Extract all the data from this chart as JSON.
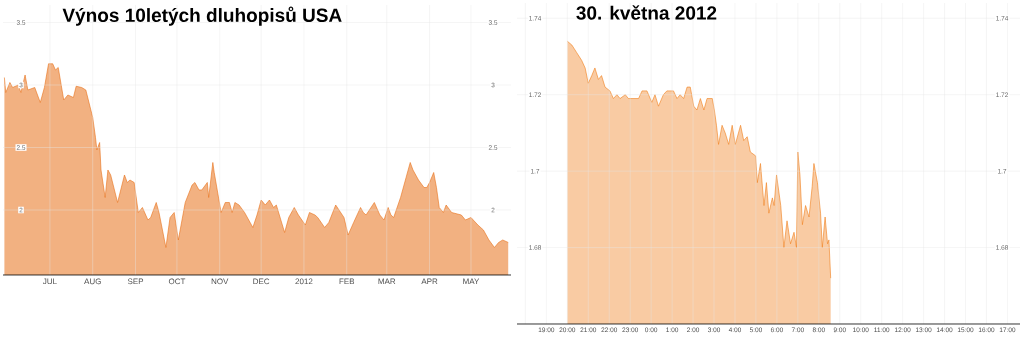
{
  "chart_data": [
    {
      "type": "area",
      "title": "Výnos 10letých dluhopisů USA",
      "color": "#e8711a",
      "grid": true,
      "xlim": [
        "2011-05-28",
        "2012-05-30"
      ],
      "ylim": [
        1.48,
        3.64
      ],
      "yticks": [
        2,
        2.5,
        3,
        3.5
      ],
      "y2lim": [
        1.48,
        3.64
      ],
      "y2ticks": [
        2,
        2.5,
        3,
        3.5
      ],
      "xticks": [
        {
          "value": "2011-07-01",
          "label": "JUL"
        },
        {
          "value": "2011-08-01",
          "label": "AUG"
        },
        {
          "value": "2011-09-01",
          "label": "SEP"
        },
        {
          "value": "2011-10-01",
          "label": "OCT"
        },
        {
          "value": "2011-11-01",
          "label": "NOV"
        },
        {
          "value": "2011-12-01",
          "label": "DEC"
        },
        {
          "value": "2012-01-01",
          "label": "2012"
        },
        {
          "value": "2012-02-01",
          "label": "FEB"
        },
        {
          "value": "2012-03-01",
          "label": "MAR"
        },
        {
          "value": "2012-04-01",
          "label": "APR"
        },
        {
          "value": "2012-05-01",
          "label": "MAY"
        }
      ],
      "x": [
        "2011-05-29",
        "2011-05-30",
        "2011-06-02",
        "2011-06-04",
        "2011-06-08",
        "2011-06-10",
        "2011-06-13",
        "2011-06-15",
        "2011-06-20",
        "2011-06-24",
        "2011-06-27",
        "2011-06-30",
        "2011-07-03",
        "2011-07-05",
        "2011-07-07",
        "2011-07-11",
        "2011-07-14",
        "2011-07-18",
        "2011-07-20",
        "2011-07-24",
        "2011-07-27",
        "2011-08-01",
        "2011-08-03",
        "2011-08-04",
        "2011-08-06",
        "2011-08-07",
        "2011-08-10",
        "2011-08-12",
        "2011-08-14",
        "2011-08-19",
        "2011-08-24",
        "2011-08-26",
        "2011-08-28",
        "2011-08-31",
        "2011-09-03",
        "2011-09-06",
        "2011-09-10",
        "2011-09-12",
        "2011-09-16",
        "2011-09-18",
        "2011-09-23",
        "2011-09-26",
        "2011-09-29",
        "2011-10-02",
        "2011-10-07",
        "2011-10-12",
        "2011-10-14",
        "2011-10-17",
        "2011-10-19",
        "2011-10-23",
        "2011-10-24",
        "2011-10-27",
        "2011-10-28",
        "2011-11-02",
        "2011-11-05",
        "2011-11-08",
        "2011-11-10",
        "2011-11-12",
        "2011-11-15",
        "2011-11-19",
        "2011-11-25",
        "2011-11-28",
        "2011-12-01",
        "2011-12-04",
        "2011-12-07",
        "2011-12-10",
        "2011-12-12",
        "2011-12-18",
        "2011-12-21",
        "2011-12-25",
        "2011-12-28",
        "2012-01-02",
        "2012-01-05",
        "2012-01-09",
        "2012-01-11",
        "2012-01-16",
        "2012-01-19",
        "2012-01-24",
        "2012-01-30",
        "2012-02-02",
        "2012-02-06",
        "2012-02-11",
        "2012-02-13",
        "2012-02-15",
        "2012-02-21",
        "2012-02-25",
        "2012-02-28",
        "2012-03-02",
        "2012-03-04",
        "2012-03-06",
        "2012-03-11",
        "2012-03-15",
        "2012-03-18",
        "2012-03-20",
        "2012-03-24",
        "2012-03-28",
        "2012-03-30",
        "2012-04-01",
        "2012-04-04",
        "2012-04-06",
        "2012-04-08",
        "2012-04-11",
        "2012-04-13",
        "2012-04-17",
        "2012-04-24",
        "2012-04-27",
        "2012-05-01",
        "2012-05-06",
        "2012-05-10",
        "2012-05-14",
        "2012-05-18",
        "2012-05-21",
        "2012-05-24",
        "2012-05-28"
      ],
      "values": [
        3.06,
        2.94,
        3.02,
        2.98,
        3.0,
        2.94,
        3.08,
        2.96,
        2.98,
        2.86,
        2.98,
        3.17,
        3.17,
        3.12,
        3.14,
        2.88,
        2.92,
        2.9,
        2.99,
        2.98,
        2.96,
        2.74,
        2.58,
        2.48,
        2.54,
        2.32,
        2.1,
        2.32,
        2.28,
        2.06,
        2.28,
        2.22,
        2.24,
        2.22,
        1.98,
        2.02,
        1.92,
        1.94,
        2.06,
        1.98,
        1.7,
        1.94,
        1.98,
        1.76,
        2.06,
        2.2,
        2.22,
        2.16,
        2.16,
        2.22,
        2.1,
        2.38,
        2.3,
        1.98,
        2.06,
        2.06,
        1.98,
        2.06,
        2.04,
        1.98,
        1.86,
        1.96,
        2.08,
        2.04,
        2.08,
        2.02,
        2.04,
        1.82,
        1.94,
        2.02,
        1.96,
        1.88,
        1.98,
        1.96,
        1.94,
        1.86,
        1.9,
        2.04,
        1.94,
        1.8,
        1.9,
        2.02,
        1.98,
        1.96,
        2.06,
        1.96,
        1.92,
        2.02,
        1.96,
        1.94,
        2.1,
        2.26,
        2.38,
        2.32,
        2.24,
        2.18,
        2.18,
        2.22,
        2.3,
        2.18,
        2.02,
        1.98,
        2.04,
        1.98,
        1.96,
        1.92,
        1.94,
        1.88,
        1.84,
        1.76,
        1.7,
        1.74,
        1.76,
        1.74
      ]
    },
    {
      "type": "area",
      "title": "30. května 2012",
      "color": "#f07d1a",
      "grid": true,
      "xlim": [
        "2012-05-29T17:36",
        "2012-05-30T17:36"
      ],
      "ylim": [
        1.66,
        1.744
      ],
      "yticks": [
        1.68,
        1.7,
        1.72,
        1.74
      ],
      "y2lim": [
        1.66,
        1.744
      ],
      "y2ticks": [
        1.68,
        1.7,
        1.72,
        1.74
      ],
      "xticks": [
        {
          "value": "2012-05-29T18:00",
          "label": null
        },
        {
          "value": "2012-05-29T19:00",
          "label": "19:00"
        },
        {
          "value": "2012-05-29T20:00",
          "label": "20:00"
        },
        {
          "value": "2012-05-29T21:00",
          "label": "21:00"
        },
        {
          "value": "2012-05-29T22:00",
          "label": "22:00"
        },
        {
          "value": "2012-05-29T23:00",
          "label": "23:00"
        },
        {
          "value": "2012-05-30T00:00",
          "label": "0:00"
        },
        {
          "value": "2012-05-30T01:00",
          "label": "1:00"
        },
        {
          "value": "2012-05-30T02:00",
          "label": "2:00"
        },
        {
          "value": "2012-05-30T03:00",
          "label": "3:00"
        },
        {
          "value": "2012-05-30T04:00",
          "label": "4:00"
        },
        {
          "value": "2012-05-30T05:00",
          "label": "5:00"
        },
        {
          "value": "2012-05-30T06:00",
          "label": "6:00"
        },
        {
          "value": "2012-05-30T07:00",
          "label": "7:00"
        },
        {
          "value": "2012-05-30T08:00",
          "label": "8:00"
        },
        {
          "value": "2012-05-30T09:00",
          "label": "9:00"
        },
        {
          "value": "2012-05-30T10:00",
          "label": "10:00"
        },
        {
          "value": "2012-05-30T11:00",
          "label": "11:00"
        },
        {
          "value": "2012-05-30T12:00",
          "label": "12:00"
        },
        {
          "value": "2012-05-30T13:00",
          "label": "13:00"
        },
        {
          "value": "2012-05-30T14:00",
          "label": "14:00"
        },
        {
          "value": "2012-05-30T15:00",
          "label": "15:00"
        },
        {
          "value": "2012-05-30T16:00",
          "label": "16:00"
        },
        {
          "value": "2012-05-30T17:00",
          "label": "17:00"
        }
      ],
      "x": [
        "2012-05-29T20:00",
        "2012-05-29T20:13",
        "2012-05-29T20:27",
        "2012-05-29T20:41",
        "2012-05-29T20:51",
        "2012-05-29T21:00",
        "2012-05-29T21:10",
        "2012-05-29T21:19",
        "2012-05-29T21:29",
        "2012-05-29T21:38",
        "2012-05-29T21:48",
        "2012-05-29T22:02",
        "2012-05-29T22:12",
        "2012-05-29T22:22",
        "2012-05-29T22:31",
        "2012-05-29T22:46",
        "2012-05-29T22:55",
        "2012-05-29T23:24",
        "2012-05-29T23:34",
        "2012-05-29T23:48",
        "2012-05-30T00:02",
        "2012-05-30T00:11",
        "2012-05-30T00:21",
        "2012-05-30T00:35",
        "2012-05-30T00:45",
        "2012-05-30T01:04",
        "2012-05-30T01:14",
        "2012-05-30T01:23",
        "2012-05-30T01:33",
        "2012-05-30T01:43",
        "2012-05-30T01:52",
        "2012-05-30T02:02",
        "2012-05-30T02:11",
        "2012-05-30T02:21",
        "2012-05-30T02:31",
        "2012-05-30T02:40",
        "2012-05-30T02:55",
        "2012-05-30T03:01",
        "2012-05-30T03:07",
        "2012-05-30T03:13",
        "2012-05-30T03:23",
        "2012-05-30T03:32",
        "2012-05-30T03:42",
        "2012-05-30T03:52",
        "2012-05-30T04:01",
        "2012-05-30T04:16",
        "2012-05-30T04:25",
        "2012-05-30T04:35",
        "2012-05-30T04:44",
        "2012-05-30T04:59",
        "2012-05-30T05:04",
        "2012-05-30T05:13",
        "2012-05-30T05:23",
        "2012-05-30T05:30",
        "2012-05-30T05:37",
        "2012-05-30T05:47",
        "2012-05-30T05:52",
        "2012-05-30T05:59",
        "2012-05-30T06:11",
        "2012-05-30T06:20",
        "2012-05-30T06:29",
        "2012-05-30T06:39",
        "2012-05-30T06:49",
        "2012-05-30T06:56",
        "2012-05-30T07:00",
        "2012-05-30T07:06",
        "2012-05-30T07:13",
        "2012-05-30T07:22",
        "2012-05-30T07:32",
        "2012-05-30T07:41",
        "2012-05-30T07:46",
        "2012-05-30T07:56",
        "2012-05-30T08:05",
        "2012-05-30T08:10",
        "2012-05-30T08:18",
        "2012-05-30T08:25",
        "2012-05-30T08:29",
        "2012-05-30T08:34"
      ],
      "values": [
        1.734,
        1.733,
        1.731,
        1.729,
        1.727,
        1.723,
        1.725,
        1.727,
        1.724,
        1.725,
        1.722,
        1.721,
        1.719,
        1.72,
        1.719,
        1.72,
        1.719,
        1.719,
        1.721,
        1.721,
        1.718,
        1.72,
        1.717,
        1.72,
        1.721,
        1.721,
        1.719,
        1.72,
        1.719,
        1.722,
        1.722,
        1.717,
        1.716,
        1.719,
        1.716,
        1.719,
        1.719,
        1.716,
        1.712,
        1.707,
        1.712,
        1.71,
        1.707,
        1.712,
        1.707,
        1.712,
        1.708,
        1.709,
        1.705,
        1.704,
        1.697,
        1.702,
        1.691,
        1.697,
        1.689,
        1.693,
        1.691,
        1.699,
        1.691,
        1.68,
        1.687,
        1.681,
        1.684,
        1.68,
        1.705,
        1.699,
        1.686,
        1.691,
        1.688,
        1.696,
        1.702,
        1.697,
        1.689,
        1.68,
        1.688,
        1.681,
        1.682,
        1.672
      ]
    }
  ]
}
